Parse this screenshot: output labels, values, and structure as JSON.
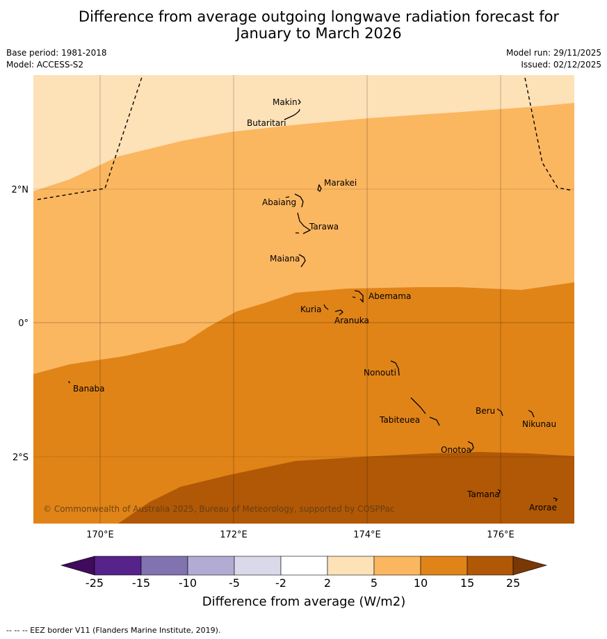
{
  "title": {
    "line1": "Difference from average outgoing longwave radiation forecast for",
    "line2": "January to March 2026"
  },
  "meta": {
    "base_period": "Base period: 1981-2018",
    "model": "Model: ACCESS-S2",
    "model_run": "Model run: 29/11/2025",
    "issued": "Issued: 02/12/2025"
  },
  "map": {
    "lat_labels": [
      "2°N",
      "0°",
      "2°S"
    ],
    "lon_labels": [
      "170°E",
      "172°E",
      "174°E",
      "176°E"
    ],
    "copyright": "© Commonwealth of Australia 2025, Bureau of Meteorology, supported by COSPPac",
    "islands": [
      "Makin",
      "Butaritari",
      "Marakei",
      "Abaiang",
      "Tarawa",
      "Maiana",
      "Abemama",
      "Kuria",
      "Aranuka",
      "Banaba",
      "Nonouti",
      "Beru",
      "Nikunau",
      "Tabiteuea",
      "Onotoa",
      "Tamana",
      "Arorae"
    ],
    "band_colors": {
      "2_to_5": "#fde1b7",
      "5_to_10": "#fbb660",
      "10_to_15": "#e08418",
      "15_to_25": "#b05806"
    }
  },
  "legend": {
    "tick_labels": [
      "-25",
      "-15",
      "-10",
      "-5",
      "-2",
      "2",
      "5",
      "10",
      "15",
      "25"
    ],
    "title": "Difference from average (W/m2)",
    "colors": [
      "#3f0b5c",
      "#55238a",
      "#8173b0",
      "#b2acd4",
      "#d9d9ea",
      "#ffffff",
      "#fde1b7",
      "#fbb660",
      "#e08418",
      "#b05806",
      "#7a3805"
    ]
  },
  "footnote": "--  --  -- EEZ border V11 (Flanders Marine Institute, 2019)."
}
